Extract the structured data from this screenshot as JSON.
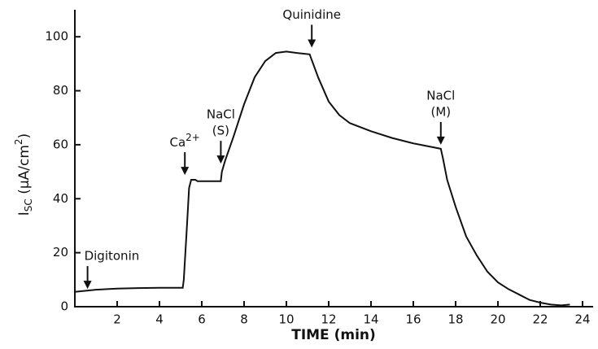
{
  "chart_data": {
    "type": "line",
    "x_label": "TIME (min)",
    "y_label": [
      "I",
      "SC",
      " (μA/cm",
      "2",
      ")"
    ],
    "xlim": [
      0,
      24.5
    ],
    "ylim": [
      0,
      110
    ],
    "xticks": [
      2,
      4,
      6,
      8,
      10,
      12,
      14,
      16,
      18,
      20,
      22,
      24
    ],
    "yticks": [
      0,
      20,
      40,
      60,
      80,
      100
    ],
    "color": "#111111",
    "x": [
      0,
      1,
      2,
      3,
      4,
      5.1,
      5.15,
      5.3,
      5.4,
      5.5,
      5.7,
      5.8,
      6.9,
      6.95,
      7.1,
      7.5,
      8,
      8.5,
      9,
      9.5,
      10,
      10.5,
      11.1,
      11.5,
      12,
      12.5,
      13,
      14,
      15,
      16,
      17.3,
      17.4,
      17.6,
      18,
      18.5,
      19,
      19.5,
      20,
      20.5,
      21,
      21.5,
      22,
      22.5,
      23,
      23.4
    ],
    "values": [
      5.5,
      6.3,
      6.7,
      6.9,
      7,
      7,
      10,
      30,
      44,
      47,
      47,
      46.5,
      46.5,
      50,
      54,
      63,
      75,
      85,
      91,
      94,
      94.5,
      94,
      93.5,
      85,
      76,
      71,
      68,
      65,
      62.5,
      60.5,
      58.5,
      55,
      47,
      37,
      26,
      19,
      13,
      9,
      6.5,
      4.5,
      2.5,
      1.5,
      0.8,
      0.5,
      0.8
    ],
    "annotations": [
      {
        "text": [
          "Digitonin"
        ],
        "x": 0.6,
        "y": 6.6
      },
      {
        "text": [
          [
            "Ca",
            "2+"
          ]
        ],
        "x": 5.2,
        "y": 48.8
      },
      {
        "text": [
          "NaCl",
          "(S)"
        ],
        "x": 6.9,
        "y": 53
      },
      {
        "text": [
          "Quinidine"
        ],
        "x": 11.2,
        "y": 96
      },
      {
        "text": [
          "NaCl",
          "(M)"
        ],
        "x": 17.3,
        "y": 60
      }
    ]
  }
}
